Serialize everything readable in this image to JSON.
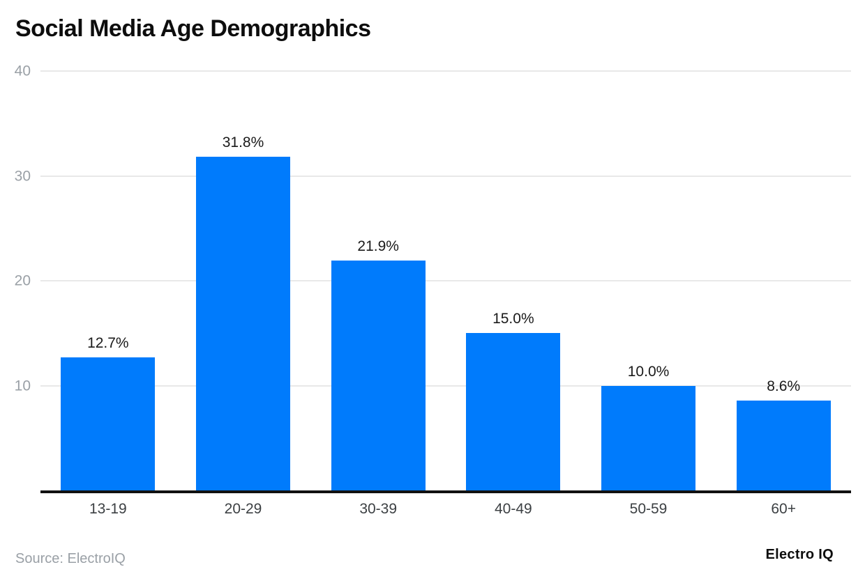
{
  "chart_data": {
    "type": "bar",
    "title": "Social Media Age Demographics",
    "categories": [
      "13-19",
      "20-29",
      "30-39",
      "40-49",
      "50-59",
      "60+"
    ],
    "values": [
      12.7,
      31.8,
      21.9,
      15.0,
      10.0,
      8.6
    ],
    "value_labels": [
      "12.7%",
      "31.8%",
      "21.9%",
      "15.0%",
      "10.0%",
      "8.6%"
    ],
    "xlabel": "",
    "ylabel": "",
    "ylim": [
      0,
      40
    ],
    "yticks": [
      10,
      20,
      30,
      40
    ],
    "grid": "horizontal",
    "legend": "none",
    "bar_color": "#007bfc",
    "gridline_color": "#e8e8e8",
    "axis_line_color": "#111111",
    "ytick_color": "#9aa0a6"
  },
  "footer": {
    "source_text": "Source: ElectroIQ",
    "brand_text": "Electro IQ"
  }
}
